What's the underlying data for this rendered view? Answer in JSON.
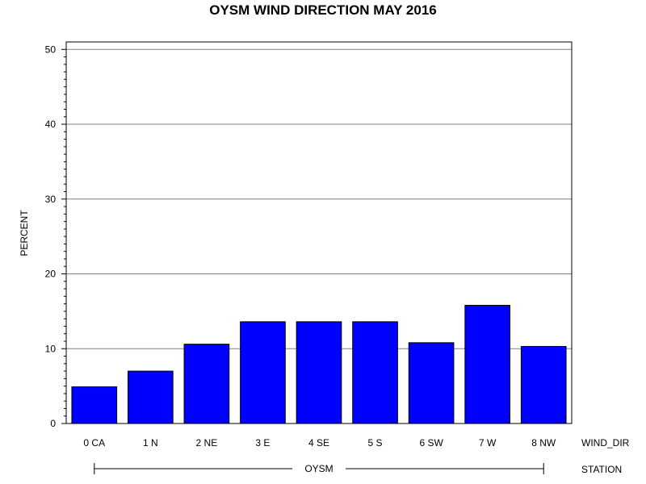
{
  "chart_data": {
    "type": "bar",
    "title": "OYSM WIND DIRECTION MAY 2016",
    "ylabel": "PERCENT",
    "xlabel": "WIND_DIR",
    "group_label": "STATION",
    "group_name": "OYSM",
    "categories": [
      "0 CA",
      "1 N",
      "2 NE",
      "3 E",
      "4 SE",
      "5 S",
      "6 SW",
      "7 W",
      "8 NW"
    ],
    "values": [
      4.9,
      7.0,
      10.6,
      13.6,
      13.6,
      13.6,
      10.8,
      15.8,
      10.3
    ],
    "ylim": [
      0,
      51
    ],
    "yticks": [
      "0",
      "10",
      "20",
      "30",
      "40",
      "50"
    ],
    "grid": true,
    "bar_color": "#0000ff"
  }
}
